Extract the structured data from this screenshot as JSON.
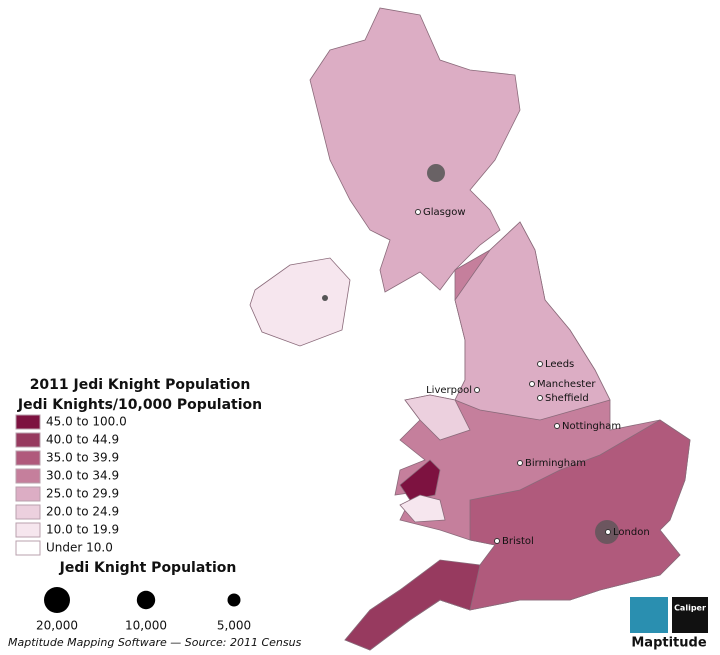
{
  "title": "2011 Jedi Knight Population",
  "subtitle": "Jedi Knights/10,000 Population",
  "classes": [
    {
      "label": "45.0 to 100.0",
      "color": "#7d1240"
    },
    {
      "label": "40.0 to 44.9",
      "color": "#973a5f"
    },
    {
      "label": "35.0 to 39.9",
      "color": "#b05a7c"
    },
    {
      "label": "30.0 to 34.9",
      "color": "#c57f9c"
    },
    {
      "label": "25.0 to 29.9",
      "color": "#dcadc4"
    },
    {
      "label": "20.0 to 24.9",
      "color": "#ecd0de"
    },
    {
      "label": "10.0 to 19.9",
      "color": "#f6e6ee"
    },
    {
      "label": "Under 10.0",
      "color": "#ffffff"
    }
  ],
  "size_legend": {
    "title": "Jedi Knight Population",
    "items": [
      {
        "value": 20000,
        "label": "20,000"
      },
      {
        "value": 10000,
        "label": "10,000"
      },
      {
        "value": 5000,
        "label": "5,000"
      }
    ]
  },
  "cities": [
    "Glasgow",
    "Leeds",
    "Liverpool",
    "Manchester",
    "Sheffield",
    "Nottingham",
    "Birmingham",
    "Bristol",
    "London"
  ],
  "source": "Maptitude Mapping Software — Source: 2011 Census",
  "logo": {
    "name": "Maptitude",
    "brand": "Caliper"
  }
}
